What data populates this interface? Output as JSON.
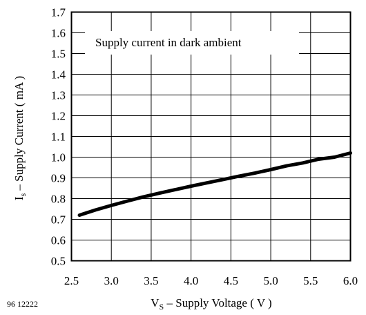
{
  "chart_data": {
    "type": "line",
    "title": "",
    "annotation": "Supply current in dark ambient",
    "figure_id": "96 12222",
    "xlabel": {
      "symbol": "V",
      "subscript": "S",
      "text": " – Supply Voltage ( V )"
    },
    "ylabel": {
      "symbol": "I",
      "subscript": "s",
      "text": " – Supply Current ( mA )"
    },
    "xlim": [
      2.5,
      6.0
    ],
    "ylim": [
      0.5,
      1.7
    ],
    "xticks": [
      "2.5",
      "3.0",
      "3.5",
      "4.0",
      "4.5",
      "5.0",
      "5.5",
      "6.0"
    ],
    "yticks": [
      "0.5",
      "0.6",
      "0.7",
      "0.8",
      "0.9",
      "1.0",
      "1.1",
      "1.2",
      "1.3",
      "1.4",
      "1.5",
      "1.6",
      "1.7"
    ],
    "grid": true,
    "series": [
      {
        "name": "",
        "x": [
          2.6,
          2.8,
          3.0,
          3.2,
          3.4,
          3.6,
          3.8,
          4.0,
          4.2,
          4.4,
          4.6,
          4.8,
          5.0,
          5.2,
          5.4,
          5.6,
          5.8,
          6.0
        ],
        "y": [
          0.72,
          0.745,
          0.767,
          0.788,
          0.808,
          0.826,
          0.843,
          0.86,
          0.876,
          0.892,
          0.908,
          0.923,
          0.94,
          0.958,
          0.972,
          0.99,
          1.0,
          1.02
        ]
      }
    ]
  }
}
